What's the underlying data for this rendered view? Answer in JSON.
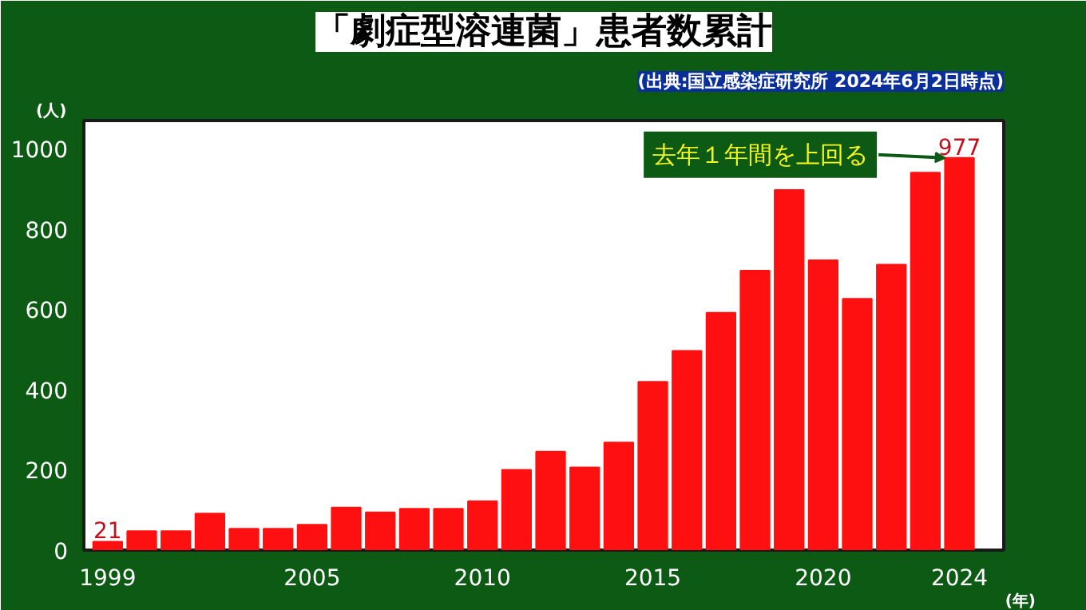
{
  "chart_data": {
    "type": "bar",
    "title": "「劇症型溶連菌」患者数累計",
    "subtitle": "(出典:国立感染症研究所 2024年6月2日時点)",
    "ylabel": "(人)",
    "xlabel": "(年)",
    "x": [
      1999,
      2000,
      2001,
      2002,
      2003,
      2004,
      2005,
      2006,
      2007,
      2008,
      2009,
      2010,
      2011,
      2012,
      2013,
      2014,
      2015,
      2016,
      2017,
      2018,
      2019,
      2020,
      2021,
      2022,
      2023,
      2024
    ],
    "values": [
      21,
      47,
      47,
      91,
      53,
      53,
      63,
      106,
      94,
      103,
      103,
      122,
      200,
      245,
      206,
      268,
      419,
      496,
      591,
      696,
      897,
      722,
      626,
      711,
      940,
      977
    ],
    "value_labels": [
      "21",
      null,
      null,
      null,
      null,
      null,
      null,
      null,
      null,
      null,
      null,
      null,
      null,
      null,
      null,
      null,
      null,
      null,
      null,
      null,
      null,
      null,
      null,
      null,
      null,
      "977"
    ],
    "color": "#ff1010",
    "xlim": [
      1998.3,
      2025.3
    ],
    "xticks": [
      1999,
      2005,
      2010,
      2015,
      2020,
      2024
    ],
    "ylim": [
      0,
      1070
    ],
    "yticks": [
      0,
      200,
      400,
      600,
      800,
      1000
    ],
    "grid": false,
    "annotations": [
      {
        "text": "去年１年間を上回る",
        "x": 2024,
        "y": 977
      }
    ]
  }
}
